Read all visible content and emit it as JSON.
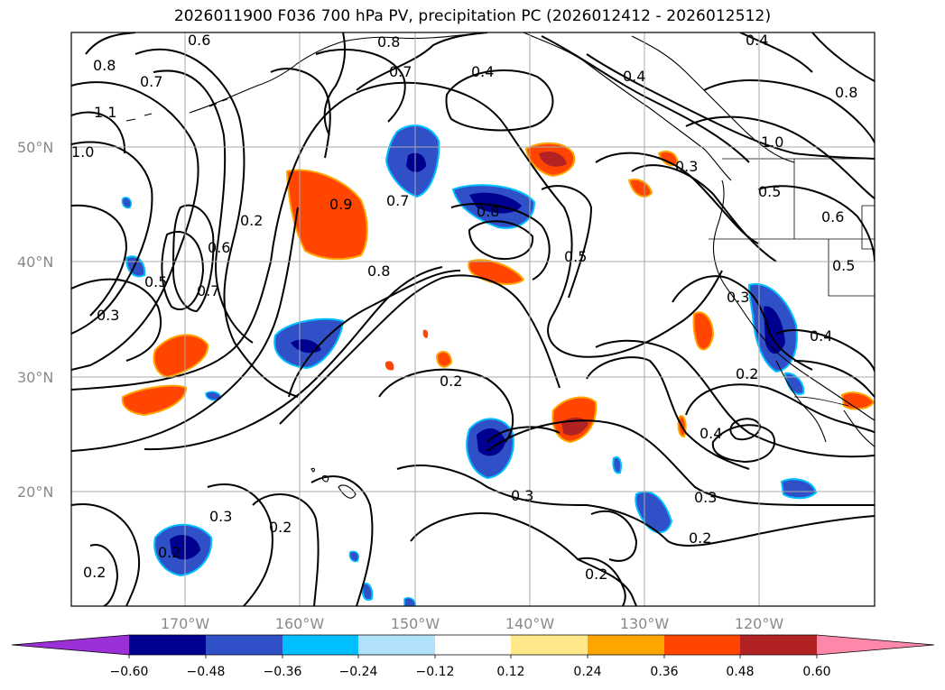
{
  "title": "2026011900 F036 700 hPa PV, precipitation PC (2026012412 - 2026012512)",
  "map": {
    "lat_labels": [
      "50°N",
      "40°N",
      "30°N",
      "20°N"
    ],
    "lon_labels": [
      "170°W",
      "160°W",
      "150°W",
      "140°W",
      "130°W",
      "120°W"
    ],
    "contour_labels": [
      "0.8",
      "0.7",
      "0.6",
      "1.1",
      "1.0",
      "0.2",
      "0.6",
      "0.7",
      "0.5",
      "0.3",
      "0.9",
      "0.8",
      "0.7",
      "0.8",
      "0.4",
      "0.4",
      "0.8",
      "0.7",
      "0.5",
      "0.3",
      "1.0",
      "0.5",
      "0.6",
      "0.5",
      "0.4",
      "0.2",
      "0.3",
      "0.4",
      "0.2",
      "0.3",
      "0.3",
      "0.2",
      "0.2",
      "0.3",
      "0.2",
      "0.2",
      "0.2",
      "0.8",
      "0.4"
    ]
  },
  "colorbar": {
    "ticks": [
      "−0.60",
      "−0.48",
      "−0.36",
      "−0.24",
      "−0.12",
      "0.12",
      "0.24",
      "0.36",
      "0.48",
      "0.60"
    ],
    "colors": [
      "#9b30d6",
      "#000090",
      "#3050c8",
      "#00bfff",
      "#b0e0fa",
      "#ffffff",
      "#ffe88a",
      "#ffa500",
      "#ff4500",
      "#b22222",
      "#ff88aa"
    ]
  }
}
